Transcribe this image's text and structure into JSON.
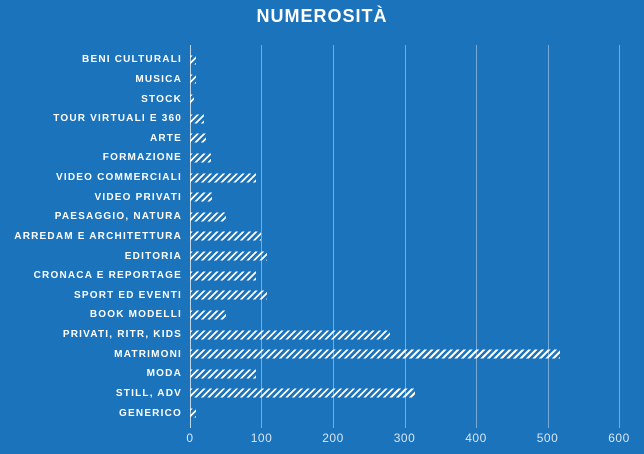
{
  "colors": {
    "background": "#1B73BC",
    "bar_hatch": "#FFFFFF",
    "gridline": "rgba(255,255,255,0.40)",
    "axis_line": "rgba(255,255,255,0.70)",
    "category_label": "#FFFFFF",
    "tick_label": "#D8E6F3"
  },
  "chart_data": {
    "type": "bar",
    "orientation": "horizontal",
    "title": "NUMEROSITÀ",
    "categories": [
      "BENI CULTURALI",
      "MUSICA",
      "STOCK",
      "TOUR VIRTUALI E 360",
      "ARTE",
      "FORMAZIONE",
      "VIDEO COMMERCIALI",
      "VIDEO PRIVATI",
      "PAESAGGIO, NATURA",
      "ARREDAM E ARCHITETTURA",
      "EDITORIA",
      "CRONACA E REPORTAGE",
      "SPORT ED EVENTI",
      "BOOK MODELLI",
      "PRIVATI, RITR, KIDS",
      "MATRIMONI",
      "MODA",
      "STILL, ADV",
      "GENERICO"
    ],
    "values": [
      8,
      8,
      5,
      19,
      22,
      29,
      93,
      31,
      51,
      100,
      108,
      93,
      108,
      51,
      280,
      517,
      92,
      315,
      9
    ],
    "xlabel": "",
    "ylabel": "",
    "xlim": [
      0,
      600
    ],
    "x_ticks": [
      0,
      100,
      200,
      300,
      400,
      500,
      600
    ],
    "grid": true,
    "legend": false,
    "bar_fill_style": "white diagonal hatch on blue background"
  }
}
